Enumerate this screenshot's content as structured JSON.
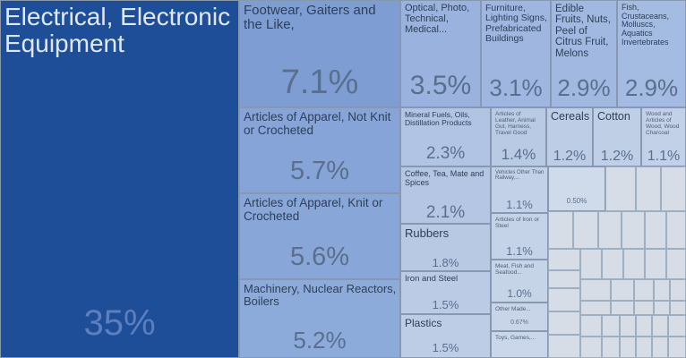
{
  "chart_data": {
    "type": "treemap",
    "title": "",
    "unit": "%",
    "items": [
      {
        "label": "Electrical, Electronic Equipment",
        "display": "35%",
        "value": 35.0
      },
      {
        "label": "Footwear, Gaiters and the Like,",
        "display": "7.1%",
        "value": 7.1
      },
      {
        "label": "Articles of Apparel, Not Knit or Crocheted",
        "display": "5.7%",
        "value": 5.7
      },
      {
        "label": "Articles of Apparel, Knit or Crocheted",
        "display": "5.6%",
        "value": 5.6
      },
      {
        "label": "Machinery, Nuclear Reactors, Boilers",
        "display": "5.2%",
        "value": 5.2
      },
      {
        "label": "Optical, Photo, Technical, Medical...",
        "display": "3.5%",
        "value": 3.5
      },
      {
        "label": "Furniture, Lighting Signs, Prefabricated Buildings",
        "display": "3.1%",
        "value": 3.1
      },
      {
        "label": "Edible Fruits, Nuts, Peel of Citrus Fruit, Melons",
        "display": "2.9%",
        "value": 2.9
      },
      {
        "label": "Fish, Crustaceans, Molluscs, Aquatics Invertebrates",
        "display": "2.9%",
        "value": 2.9
      },
      {
        "label": "Mineral Fuels, Oils, Distillation Products",
        "display": "2.3%",
        "value": 2.3
      },
      {
        "label": "Articles of Leather, Animal Gut, Harness, Travel Good",
        "display": "1.4%",
        "value": 1.4
      },
      {
        "label": "Cereals",
        "display": "1.2%",
        "value": 1.2
      },
      {
        "label": "Cotton",
        "display": "1.2%",
        "value": 1.2
      },
      {
        "label": "Wood and Articles of Wood, Wood Charcoal",
        "display": "1.1%",
        "value": 1.1
      },
      {
        "label": "Coffee, Tea, Mate and Spices",
        "display": "2.1%",
        "value": 2.1
      },
      {
        "label": "Rubbers",
        "display": "1.8%",
        "value": 1.8
      },
      {
        "label": "Iron and Steel",
        "display": "1.5%",
        "value": 1.5
      },
      {
        "label": "Plastics",
        "display": "1.5%",
        "value": 1.5
      },
      {
        "label": "Vehicles Other Than Railway,...",
        "display": "1.1%",
        "value": 1.1
      },
      {
        "label": "Articles of Iron or Steel",
        "display": "1.1%",
        "value": 1.1
      },
      {
        "label": "Meat, Fish and Seafood...",
        "display": "1.0%",
        "value": 1.0
      },
      {
        "label": "Other Made...",
        "display": "0.67%",
        "value": 0.67
      },
      {
        "label": "Toys, Games,...",
        "display": "",
        "value": null
      },
      {
        "label": "",
        "display": "0.50%",
        "value": 0.5
      }
    ]
  }
}
